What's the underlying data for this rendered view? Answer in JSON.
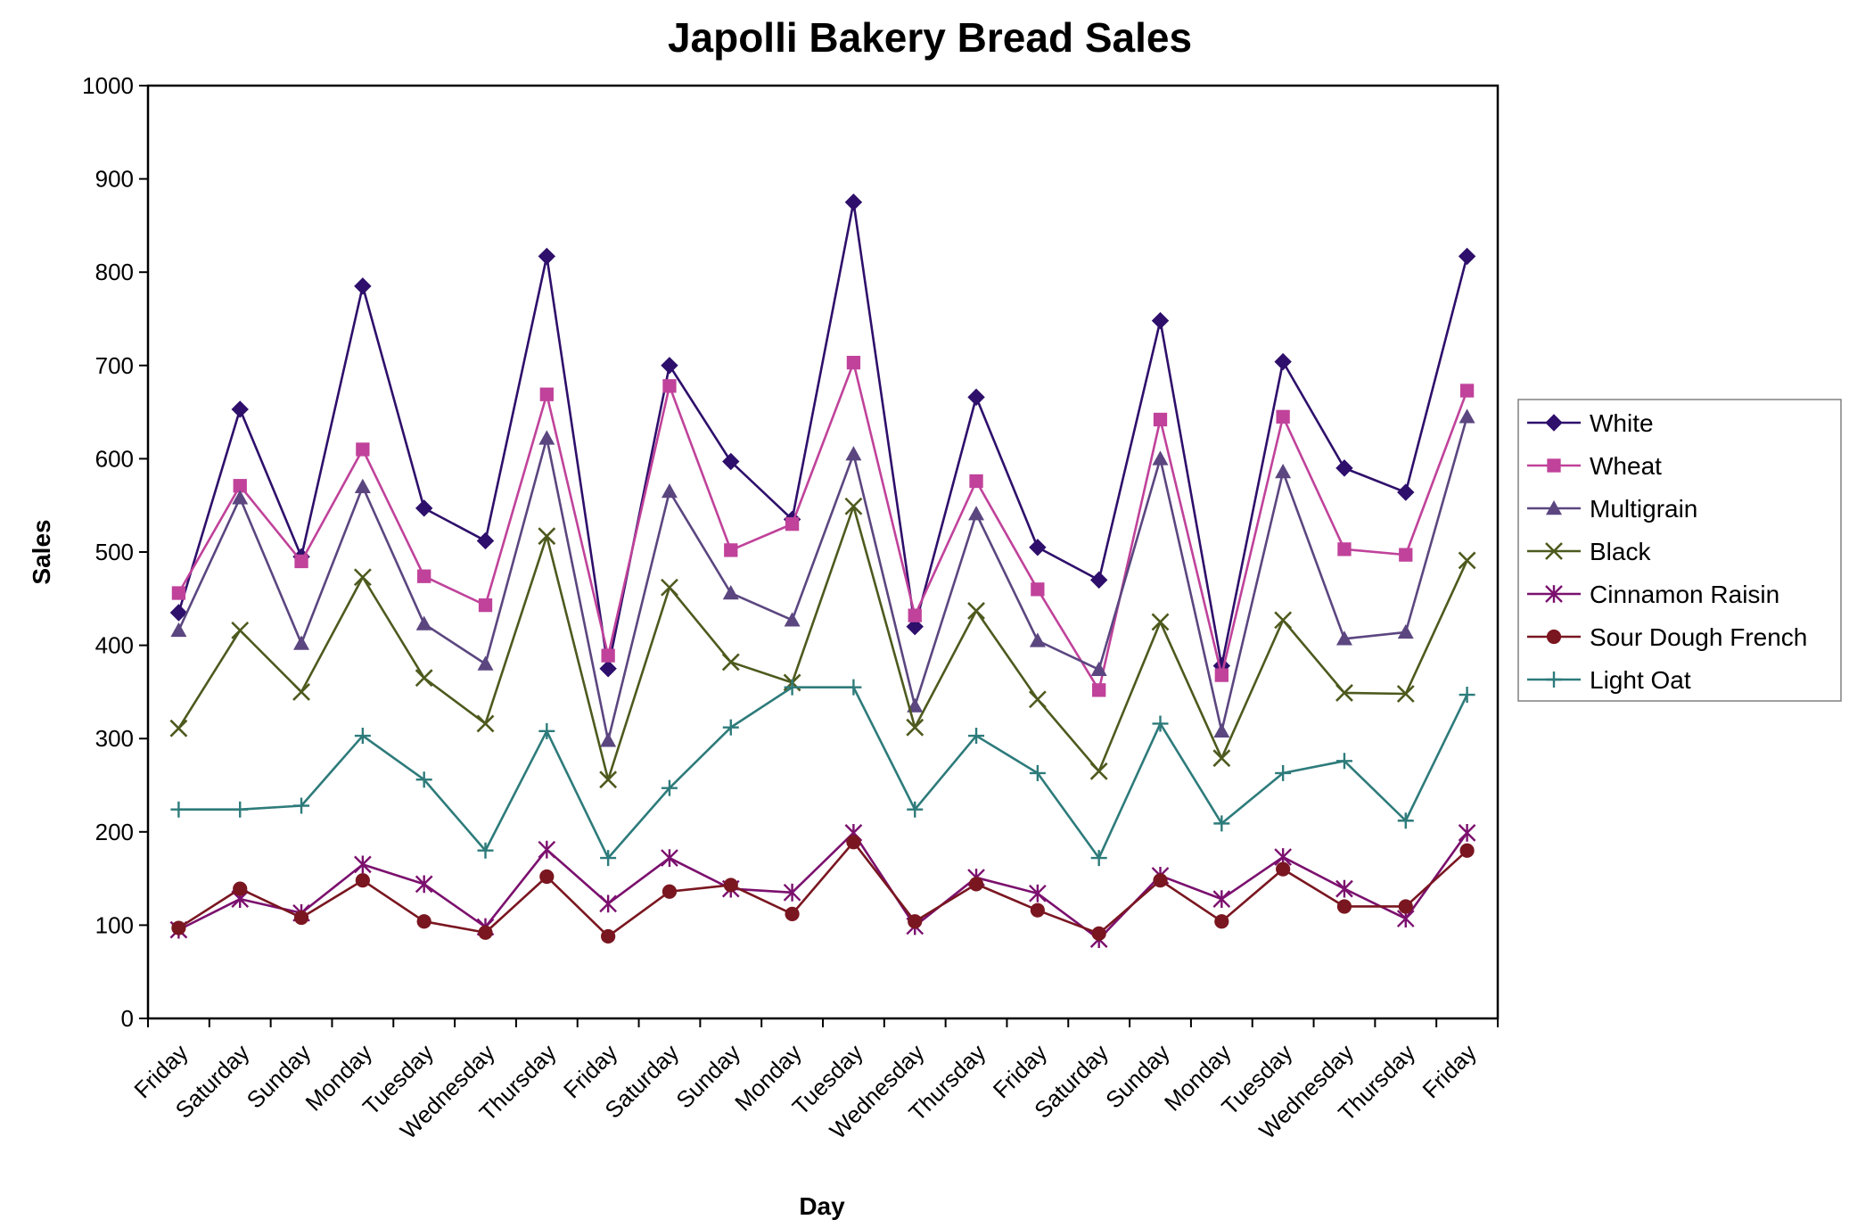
{
  "chart_data": {
    "type": "line",
    "title": "Japolli Bakery Bread Sales",
    "xlabel": "Day",
    "ylabel": "Sales",
    "ylim": [
      0,
      1000
    ],
    "yticks": [
      0,
      100,
      200,
      300,
      400,
      500,
      600,
      700,
      800,
      900,
      1000
    ],
    "grid": false,
    "legend_position": "right",
    "categories": [
      "Friday",
      "Saturday",
      "Sunday",
      "Monday",
      "Tuesday",
      "Wednesday",
      "Thursday",
      "Friday",
      "Saturday",
      "Sunday",
      "Monday",
      "Tuesday",
      "Wednesday",
      "Thursday",
      "Friday",
      "Saturday",
      "Sunday",
      "Monday",
      "Tuesday",
      "Wednesday",
      "Thursday",
      "Friday"
    ],
    "series": [
      {
        "name": "White",
        "color": "#2e0f6b",
        "marker": "diamond",
        "values": [
          435,
          653,
          495,
          785,
          547,
          512,
          817,
          375,
          700,
          597,
          535,
          875,
          420,
          666,
          505,
          470,
          748,
          378,
          704,
          590,
          564,
          817
        ]
      },
      {
        "name": "Wheat",
        "color": "#c0429a",
        "marker": "square",
        "values": [
          456,
          571,
          490,
          610,
          474,
          443,
          669,
          389,
          678,
          502,
          530,
          703,
          432,
          576,
          460,
          352,
          642,
          368,
          645,
          503,
          497,
          673
        ]
      },
      {
        "name": "Multigrain",
        "color": "#5b4680",
        "marker": "triangle",
        "values": [
          416,
          558,
          402,
          570,
          423,
          380,
          622,
          298,
          565,
          456,
          427,
          605,
          335,
          541,
          405,
          374,
          600,
          308,
          586,
          407,
          414,
          645
        ]
      },
      {
        "name": "Black",
        "color": "#4d5a1e",
        "marker": "x",
        "values": [
          311,
          416,
          350,
          473,
          365,
          316,
          517,
          256,
          462,
          382,
          360,
          549,
          312,
          437,
          342,
          265,
          425,
          279,
          427,
          349,
          348,
          491
        ]
      },
      {
        "name": "Cinnamon Raisin",
        "color": "#7b106e",
        "marker": "asterisk",
        "values": [
          95,
          128,
          113,
          165,
          144,
          98,
          181,
          123,
          172,
          139,
          135,
          199,
          99,
          151,
          134,
          85,
          153,
          128,
          173,
          139,
          107,
          199
        ]
      },
      {
        "name": "Sour Dough French",
        "color": "#7a1620",
        "marker": "circle",
        "values": [
          97,
          139,
          108,
          148,
          104,
          92,
          152,
          88,
          136,
          143,
          112,
          189,
          104,
          144,
          116,
          91,
          148,
          104,
          160,
          120,
          120,
          180
        ]
      },
      {
        "name": "Light Oat",
        "color": "#2e7b7b",
        "marker": "plus",
        "values": [
          224,
          224,
          228,
          303,
          256,
          180,
          308,
          172,
          247,
          312,
          355,
          355,
          224,
          303,
          263,
          172,
          316,
          209,
          263,
          276,
          212,
          347
        ]
      }
    ]
  }
}
